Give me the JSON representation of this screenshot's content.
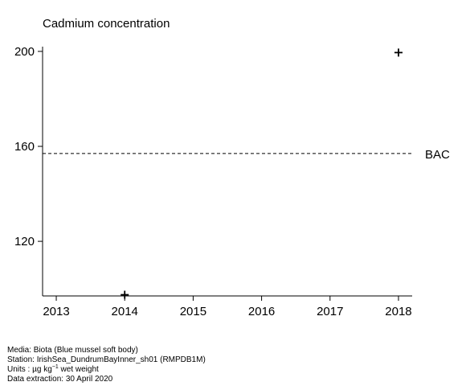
{
  "chart_data": {
    "type": "scatter",
    "title": "Cadmium concentration",
    "xlabel": "",
    "ylabel": "",
    "xlim": [
      2012.8,
      2018.2
    ],
    "ylim": [
      97,
      202
    ],
    "x_ticks": [
      "2013",
      "2014",
      "2015",
      "2016",
      "2017",
      "2018"
    ],
    "y_ticks": [
      "120",
      "160",
      "200"
    ],
    "marker": "plus",
    "points": [
      {
        "x": 2014,
        "y": 97.5
      },
      {
        "x": 2018,
        "y": 199.5
      }
    ],
    "reference_lines": [
      {
        "label": "BAC",
        "y": 157,
        "style": "dashed"
      }
    ],
    "grid": false,
    "legend": "none"
  },
  "footer": {
    "media": "Media: Biota (Blue mussel soft body)",
    "station": "Station: IrishSea_DundrumBayInner_sh01 (RMPDB1M)",
    "units_prefix": "Units : ",
    "units_mu": "µg kg",
    "units_exp": "−1",
    "units_suffix": " wet weight",
    "extraction": "Data extraction: 30 April 2020"
  }
}
